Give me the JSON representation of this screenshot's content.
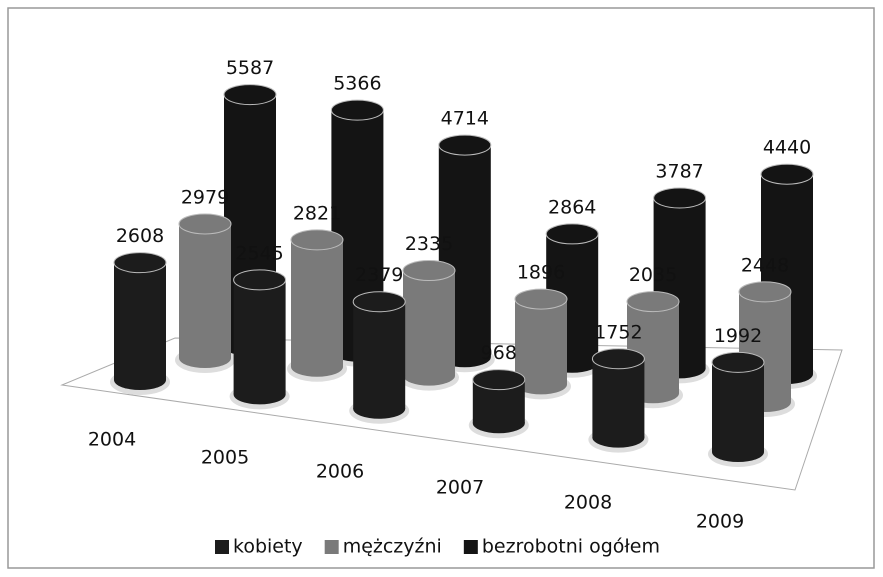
{
  "chart_data": {
    "type": "cylinder3d",
    "categories": [
      "2004",
      "2005",
      "2006",
      "2007",
      "2008",
      "2009"
    ],
    "series": [
      {
        "name": "kobiety",
        "color": "#1c1c1c",
        "values": [
          2608,
          2545,
          2379,
          968,
          1752,
          1992
        ]
      },
      {
        "name": "mężczyźni",
        "color": "#7a7a7a",
        "values": [
          2979,
          2821,
          2335,
          1896,
          2035,
          2448
        ]
      },
      {
        "name": "bezrobotni ogółem",
        "color": "#141414",
        "values": [
          5587,
          5366,
          4714,
          2864,
          3787,
          4440
        ]
      }
    ],
    "legend": "bottom"
  }
}
